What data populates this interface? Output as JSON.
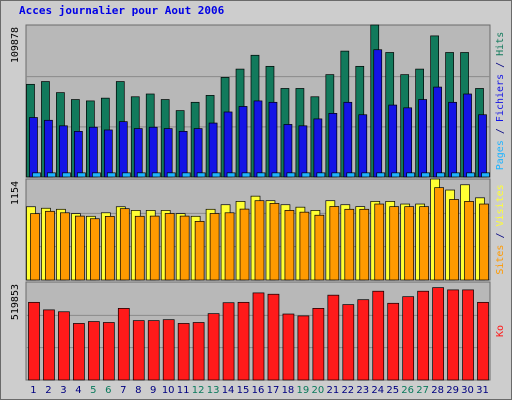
{
  "title": "Acces journalier pour Aout 2006",
  "colors": {
    "hits": "#127a5c",
    "files": "#1414e6",
    "pages": "#1fb4ff",
    "visits": "#ffff33",
    "sites": "#ff9a00",
    "kbytes": "#ff1a1a",
    "panel_bg": "#b8b8b8",
    "weekend_label": "#0a7a5c",
    "weekday_label": "#000080"
  },
  "chart_data": [
    {
      "type": "bar",
      "panel": "top",
      "scale_max_label": "109878",
      "axis_label_parts": [
        {
          "text": "Pages",
          "color_key": "pages"
        },
        {
          "text": " / ",
          "color_key": "weekday_label"
        },
        {
          "text": "Fichiers",
          "color_key": "files"
        },
        {
          "text": " / ",
          "color_key": "weekday_label"
        },
        {
          "text": "Hits",
          "color_key": "hits"
        }
      ],
      "ylim": [
        0,
        109878
      ],
      "categories": [
        "1",
        "2",
        "3",
        "4",
        "5",
        "6",
        "7",
        "8",
        "9",
        "10",
        "11",
        "12",
        "13",
        "14",
        "15",
        "16",
        "17",
        "18",
        "19",
        "20",
        "21",
        "22",
        "23",
        "24",
        "25",
        "26",
        "27",
        "28",
        "29",
        "30",
        "31"
      ],
      "series": [
        {
          "name": "Hits",
          "color_key": "hits",
          "values": [
            67000,
            69000,
            61000,
            56000,
            55000,
            57000,
            69000,
            58000,
            60000,
            56000,
            48000,
            54000,
            59000,
            72000,
            78000,
            88000,
            80000,
            64000,
            64000,
            58000,
            74000,
            91000,
            80000,
            109878,
            90000,
            74000,
            78000,
            102000,
            90000,
            90000,
            64000
          ]
        },
        {
          "name": "Fichiers",
          "color_key": "files",
          "values": [
            43000,
            41000,
            37000,
            33000,
            36000,
            34000,
            40000,
            35000,
            36000,
            35000,
            33000,
            35000,
            39000,
            47000,
            51000,
            55000,
            54000,
            38000,
            37000,
            42000,
            46000,
            54000,
            45000,
            92000,
            52000,
            50000,
            56000,
            65000,
            54000,
            60000,
            45000
          ]
        },
        {
          "name": "Pages",
          "color_key": "pages",
          "values": [
            3000,
            3000,
            3000,
            3000,
            3000,
            3000,
            3000,
            3000,
            3000,
            3000,
            3000,
            3000,
            3000,
            3000,
            3000,
            3000,
            3000,
            3000,
            3000,
            3000,
            3000,
            3000,
            3000,
            3000,
            3000,
            3000,
            3000,
            3000,
            3000,
            3000,
            3000
          ]
        }
      ]
    },
    {
      "type": "bar",
      "panel": "middle",
      "scale_max_label": "1154",
      "axis_label_parts": [
        {
          "text": "Sites",
          "color_key": "sites"
        },
        {
          "text": " / ",
          "color_key": "weekday_label"
        },
        {
          "text": "Visites",
          "color_key": "visits"
        }
      ],
      "ylim": [
        0,
        1154
      ],
      "categories": [
        "1",
        "2",
        "3",
        "4",
        "5",
        "6",
        "7",
        "8",
        "9",
        "10",
        "11",
        "12",
        "13",
        "14",
        "15",
        "16",
        "17",
        "18",
        "19",
        "20",
        "21",
        "22",
        "23",
        "24",
        "25",
        "26",
        "27",
        "28",
        "29",
        "30",
        "31"
      ],
      "series": [
        {
          "name": "Visites",
          "color_key": "visits",
          "values": [
            837,
            820,
            808,
            758,
            728,
            768,
            837,
            795,
            795,
            795,
            758,
            728,
            808,
            860,
            898,
            958,
            906,
            860,
            832,
            795,
            906,
            860,
            838,
            898,
            898,
            868,
            868,
            1154,
            1028,
            1088,
            939
          ]
        },
        {
          "name": "Sites",
          "color_key": "sites",
          "values": [
            758,
            785,
            768,
            730,
            700,
            727,
            815,
            728,
            730,
            760,
            730,
            670,
            760,
            768,
            810,
            906,
            875,
            795,
            775,
            740,
            840,
            808,
            808,
            868,
            838,
            838,
            838,
            1055,
            920,
            898,
            868
          ]
        }
      ]
    },
    {
      "type": "bar",
      "panel": "bottom",
      "scale_max_label": "519853",
      "axis_label_parts": [
        {
          "text": "Ko",
          "color_key": "kbytes"
        }
      ],
      "ylim": [
        0,
        519853
      ],
      "categories": [
        "1",
        "2",
        "3",
        "4",
        "5",
        "6",
        "7",
        "8",
        "9",
        "10",
        "11",
        "12",
        "13",
        "14",
        "15",
        "16",
        "17",
        "18",
        "19",
        "20",
        "21",
        "22",
        "23",
        "24",
        "25",
        "26",
        "27",
        "28",
        "29",
        "30",
        "31"
      ],
      "series": [
        {
          "name": "Ko",
          "color_key": "kbytes",
          "values": [
            412000,
            372000,
            362000,
            300000,
            310000,
            305000,
            380000,
            315000,
            315000,
            320000,
            300000,
            305000,
            352000,
            410000,
            412000,
            462000,
            455000,
            350000,
            340000,
            380000,
            450000,
            400000,
            426000,
            471000,
            407000,
            442000,
            471000,
            490000,
            478000,
            478000,
            412000
          ]
        }
      ]
    }
  ],
  "x_labels": [
    {
      "text": "1",
      "weekend": false
    },
    {
      "text": "2",
      "weekend": false
    },
    {
      "text": "3",
      "weekend": false
    },
    {
      "text": "4",
      "weekend": false
    },
    {
      "text": "5",
      "weekend": true
    },
    {
      "text": "6",
      "weekend": true
    },
    {
      "text": "7",
      "weekend": false
    },
    {
      "text": "8",
      "weekend": false
    },
    {
      "text": "9",
      "weekend": false
    },
    {
      "text": "10",
      "weekend": false
    },
    {
      "text": "11",
      "weekend": false
    },
    {
      "text": "12",
      "weekend": true
    },
    {
      "text": "13",
      "weekend": true
    },
    {
      "text": "14",
      "weekend": false
    },
    {
      "text": "15",
      "weekend": false
    },
    {
      "text": "16",
      "weekend": false
    },
    {
      "text": "17",
      "weekend": false
    },
    {
      "text": "18",
      "weekend": false
    },
    {
      "text": "19",
      "weekend": true
    },
    {
      "text": "20",
      "weekend": true
    },
    {
      "text": "21",
      "weekend": false
    },
    {
      "text": "22",
      "weekend": false
    },
    {
      "text": "23",
      "weekend": false
    },
    {
      "text": "24",
      "weekend": false
    },
    {
      "text": "25",
      "weekend": false
    },
    {
      "text": "26",
      "weekend": true
    },
    {
      "text": "27",
      "weekend": true
    },
    {
      "text": "28",
      "weekend": false
    },
    {
      "text": "29",
      "weekend": false
    },
    {
      "text": "30",
      "weekend": false
    },
    {
      "text": "31",
      "weekend": false
    }
  ]
}
